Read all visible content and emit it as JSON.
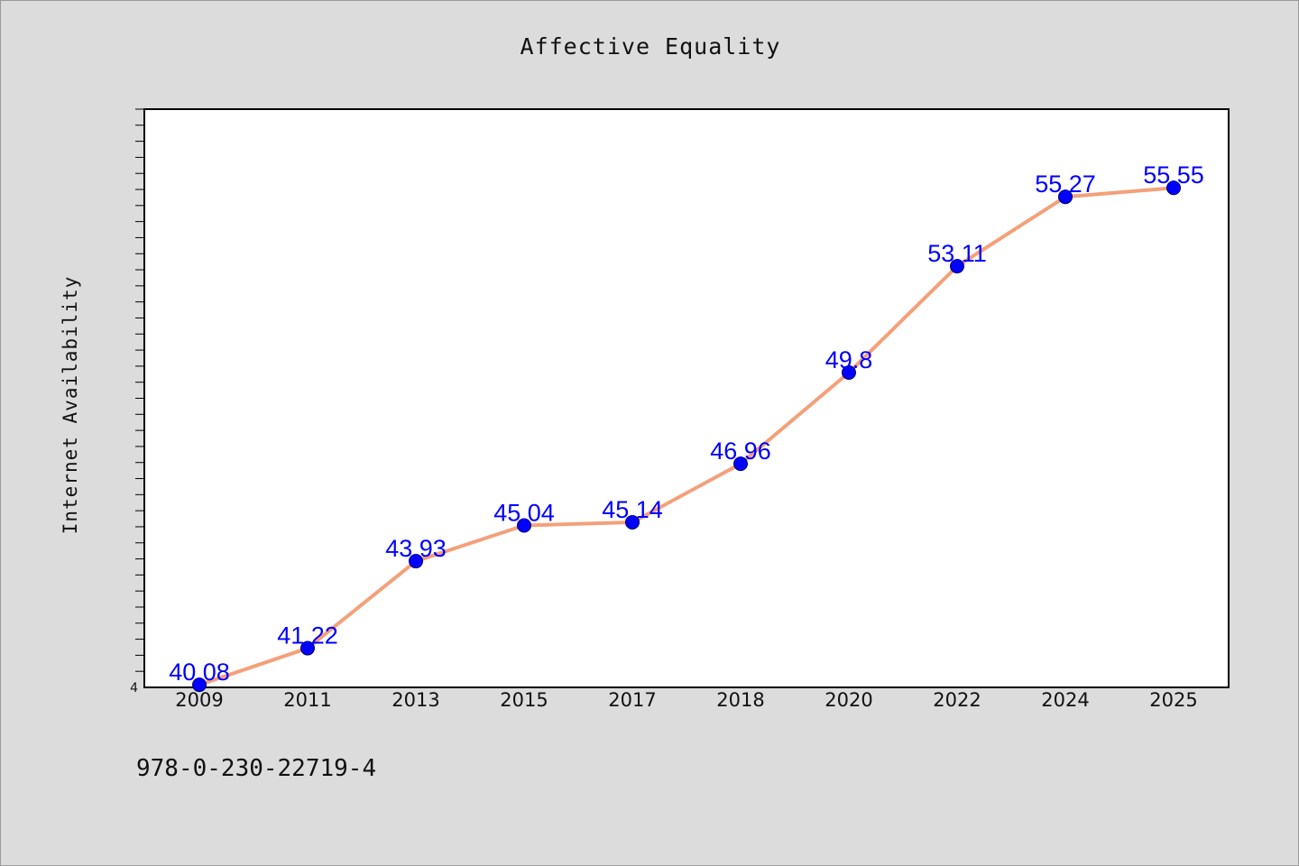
{
  "colors": {
    "page_background": "#dcdcdc",
    "plot_background": "#ffffff",
    "line": "#f4a07a",
    "marker": "#0000ff",
    "data_label": "#0000ff",
    "axis": "#000000"
  },
  "footer": {
    "isbn": "978-0-230-22719-4"
  },
  "chart_data": {
    "type": "line",
    "title": "Affective Equality",
    "xlabel": "",
    "ylabel": "Internet Availability",
    "categories": [
      "2009",
      "2011",
      "2013",
      "2015",
      "2017",
      "2018",
      "2020",
      "2022",
      "2024",
      "2025"
    ],
    "series": [
      {
        "values": [
          40.08,
          41.22,
          43.93,
          45.04,
          45.14,
          46.96,
          49.8,
          53.11,
          55.27,
          55.55
        ]
      }
    ],
    "data_labels": [
      "40.08",
      "41.22",
      "43.93",
      "45.04",
      "45.14",
      "46.96",
      "49.8",
      "53.11",
      "55.27",
      "55.55"
    ],
    "ylim": [
      40,
      58
    ],
    "y_tick_labels": [
      "4"
    ],
    "grid": false,
    "legend": "none"
  }
}
